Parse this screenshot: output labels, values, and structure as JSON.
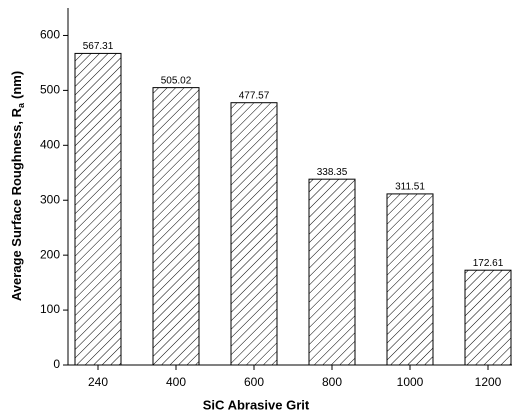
{
  "chart_data": {
    "type": "bar",
    "x_label": "SiC Abrasive Grit",
    "y_label": "Average Surface Roughness, R",
    "y_label_sub": "a",
    "y_label_end": "(nm)",
    "categories": [
      "240",
      "400",
      "600",
      "800",
      "1000",
      "1200"
    ],
    "values": [
      567.31,
      505.02,
      477.57,
      338.35,
      311.51,
      172.61
    ],
    "color": "#000000",
    "ylim": [
      0,
      650
    ],
    "yticks": [
      0,
      100,
      200,
      300,
      400,
      500,
      600
    ],
    "grid": false
  }
}
